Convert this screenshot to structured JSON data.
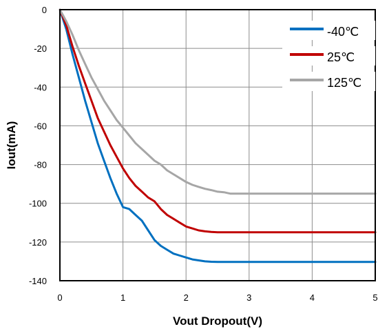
{
  "chart_data": {
    "type": "line",
    "title": "",
    "xlabel": "Vout Dropout(V)",
    "ylabel": "Iout(mA)",
    "xlim": [
      0,
      5
    ],
    "ylim": [
      -140,
      0
    ],
    "x_ticks": [
      0,
      1,
      2,
      3,
      4,
      5
    ],
    "y_ticks": [
      0,
      -20,
      -40,
      -60,
      -80,
      -100,
      -120,
      -140
    ],
    "grid": true,
    "legend_position": "top-right",
    "series": [
      {
        "name": "-40℃",
        "color": "#0070C0",
        "x": [
          0,
          0.1,
          0.2,
          0.3,
          0.4,
          0.5,
          0.6,
          0.7,
          0.8,
          0.9,
          1.0,
          1.1,
          1.2,
          1.3,
          1.4,
          1.5,
          1.6,
          1.7,
          1.8,
          1.9,
          2.0,
          2.1,
          2.2,
          2.3,
          2.4,
          2.5,
          2.6,
          2.8,
          3.0,
          3.5,
          4.0,
          4.5,
          5.0
        ],
        "y": [
          0,
          -10,
          -23,
          -35,
          -47,
          -58,
          -69,
          -78,
          -87,
          -95,
          -102,
          -103,
          -106,
          -109,
          -114,
          -119,
          -122,
          -124,
          -126,
          -127,
          -128,
          -129,
          -129.5,
          -130,
          -130.2,
          -130.3,
          -130.3,
          -130.3,
          -130.3,
          -130.3,
          -130.3,
          -130.3,
          -130.3
        ]
      },
      {
        "name": "25℃",
        "color": "#C00000",
        "x": [
          0,
          0.1,
          0.2,
          0.3,
          0.4,
          0.5,
          0.6,
          0.7,
          0.8,
          0.9,
          1.0,
          1.1,
          1.2,
          1.3,
          1.4,
          1.5,
          1.6,
          1.7,
          1.8,
          1.9,
          2.0,
          2.1,
          2.2,
          2.3,
          2.4,
          2.5,
          2.6,
          2.8,
          3.0,
          3.5,
          4.0,
          4.5,
          5.0
        ],
        "y": [
          0,
          -8,
          -19,
          -29,
          -38,
          -47,
          -56,
          -63,
          -70,
          -76,
          -82,
          -87,
          -91,
          -94,
          -97,
          -99,
          -103,
          -106,
          -108,
          -110,
          -112,
          -113,
          -114,
          -114.5,
          -114.8,
          -115,
          -115,
          -115,
          -115,
          -115,
          -115,
          -115,
          -115
        ]
      },
      {
        "name": "125℃",
        "color": "#A6A6A6",
        "x": [
          0,
          0.1,
          0.2,
          0.3,
          0.4,
          0.5,
          0.6,
          0.7,
          0.8,
          0.9,
          1.0,
          1.1,
          1.2,
          1.3,
          1.4,
          1.5,
          1.6,
          1.7,
          1.8,
          1.9,
          2.0,
          2.1,
          2.2,
          2.3,
          2.4,
          2.5,
          2.6,
          2.7,
          2.8,
          3.0,
          3.5,
          4.0,
          4.5,
          5.0
        ],
        "y": [
          0,
          -6,
          -13,
          -21,
          -28,
          -35,
          -41,
          -47,
          -52,
          -57,
          -61,
          -65,
          -69,
          -72,
          -75,
          -78,
          -80,
          -83,
          -85,
          -87,
          -89,
          -90.5,
          -91.5,
          -92.5,
          -93.2,
          -94,
          -94.3,
          -95,
          -95,
          -95,
          -95,
          -95,
          -95,
          -95
        ]
      }
    ]
  }
}
